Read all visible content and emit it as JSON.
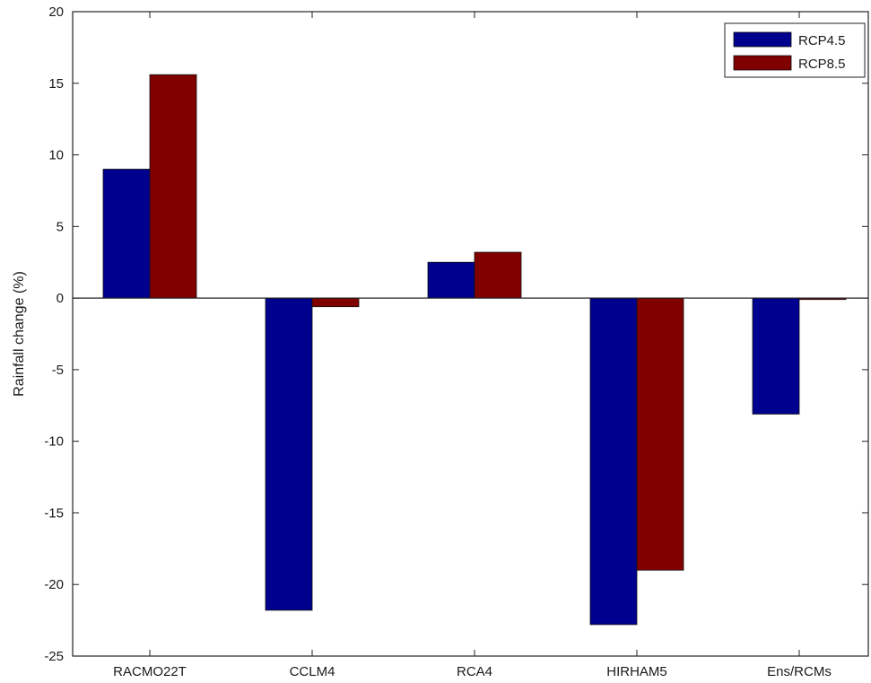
{
  "chart_data": {
    "type": "bar",
    "title": "",
    "xlabel": "",
    "ylabel": "Rainfall change (%)",
    "categories": [
      "RACMO22T",
      "CCLM4",
      "RCA4",
      "HIRHAM5",
      "Ens/RCMs"
    ],
    "series": [
      {
        "name": "RCP4.5",
        "color": "#00008f",
        "values": [
          9.0,
          -21.8,
          2.5,
          -22.8,
          -8.1
        ]
      },
      {
        "name": "RCP8.5",
        "color": "#800000",
        "values": [
          15.6,
          -0.6,
          3.2,
          -19.0,
          -0.1
        ]
      }
    ],
    "ylim": [
      -25,
      20
    ],
    "yticks": [
      20,
      15,
      10,
      5,
      0,
      -5,
      -10,
      -15,
      -20,
      -25
    ],
    "ytick_labels": [
      "20",
      "15",
      "10",
      "5",
      "0",
      "-5",
      "-10",
      "-15",
      "-20",
      "-25"
    ],
    "grid": false,
    "legend_position": "top-right"
  }
}
